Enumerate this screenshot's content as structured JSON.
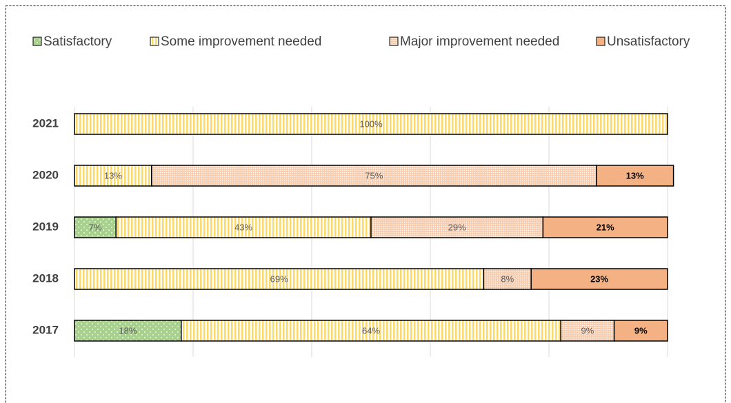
{
  "chart_data": {
    "type": "stacked-bar-horizontal",
    "categories": [
      "2021",
      "2020",
      "2019",
      "2018",
      "2017"
    ],
    "series": [
      {
        "name": "Satisfactory",
        "color": "#a9d18e",
        "values": [
          null,
          null,
          7,
          null,
          18
        ],
        "value_labels": [
          null,
          null,
          "7%",
          null,
          "18%"
        ]
      },
      {
        "name": "Some improvement needed",
        "color": "#ffd966",
        "values": [
          100,
          13,
          43,
          69,
          64
        ],
        "value_labels": [
          "100%",
          "13%",
          "43%",
          "69%",
          "64%"
        ]
      },
      {
        "name": "Major improvement needed",
        "color": "#f8cbad",
        "values": [
          null,
          75,
          29,
          8,
          9
        ],
        "value_labels": [
          null,
          "75%",
          "29%",
          "8%",
          "9%"
        ]
      },
      {
        "name": "Unsatisfactory",
        "color": "#f4b183",
        "values": [
          null,
          13,
          21,
          23,
          9
        ],
        "value_labels": [
          null,
          "13%",
          "21%",
          "23%",
          "9%"
        ]
      }
    ],
    "xlim": [
      0,
      100
    ],
    "xticks": [
      0,
      20,
      40,
      60,
      80,
      100
    ],
    "grid": true,
    "legend": "top"
  }
}
